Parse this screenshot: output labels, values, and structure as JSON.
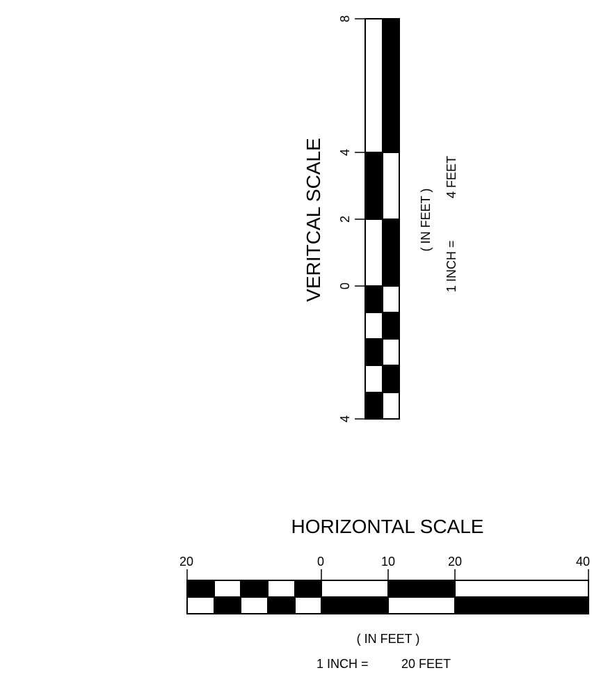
{
  "vertical_scale": {
    "title": "VERITCAL SCALE",
    "unit_note": "( IN FEET )",
    "ratio_prefix": "1 INCH =",
    "ratio_value": "4 FEET",
    "tick_labels": [
      "8",
      "4",
      "2",
      "0",
      "4"
    ]
  },
  "horizontal_scale": {
    "title": "HORIZONTAL SCALE",
    "unit_note": "( IN FEET )",
    "ratio_prefix": "1 INCH =",
    "ratio_value": "20 FEET",
    "tick_labels": [
      "20",
      "0",
      "10",
      "20",
      "40"
    ]
  },
  "colors": {
    "ink": "#000000",
    "paper": "#ffffff"
  }
}
